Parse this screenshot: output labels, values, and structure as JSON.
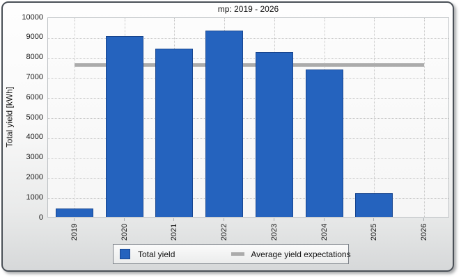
{
  "chart_data": {
    "type": "bar",
    "title": "mp: 2019 - 2026",
    "ylabel": "Total yield [kWh]",
    "xlabel": "",
    "categories": [
      "2019",
      "2020",
      "2021",
      "2022",
      "2023",
      "2024",
      "2025",
      "2026"
    ],
    "series": [
      {
        "name": "Total yield",
        "type": "bar",
        "values": [
          420,
          9060,
          8450,
          9330,
          8250,
          7380,
          1200,
          0
        ],
        "color": "#2563be",
        "border_color": "#17458f"
      },
      {
        "name": "Average yield expectations",
        "type": "reference-line",
        "value": 7660,
        "color": "#ababab"
      }
    ],
    "ylim": [
      0,
      10000
    ],
    "ytick_step": 1000,
    "grid": true,
    "legend_position": "bottom"
  }
}
